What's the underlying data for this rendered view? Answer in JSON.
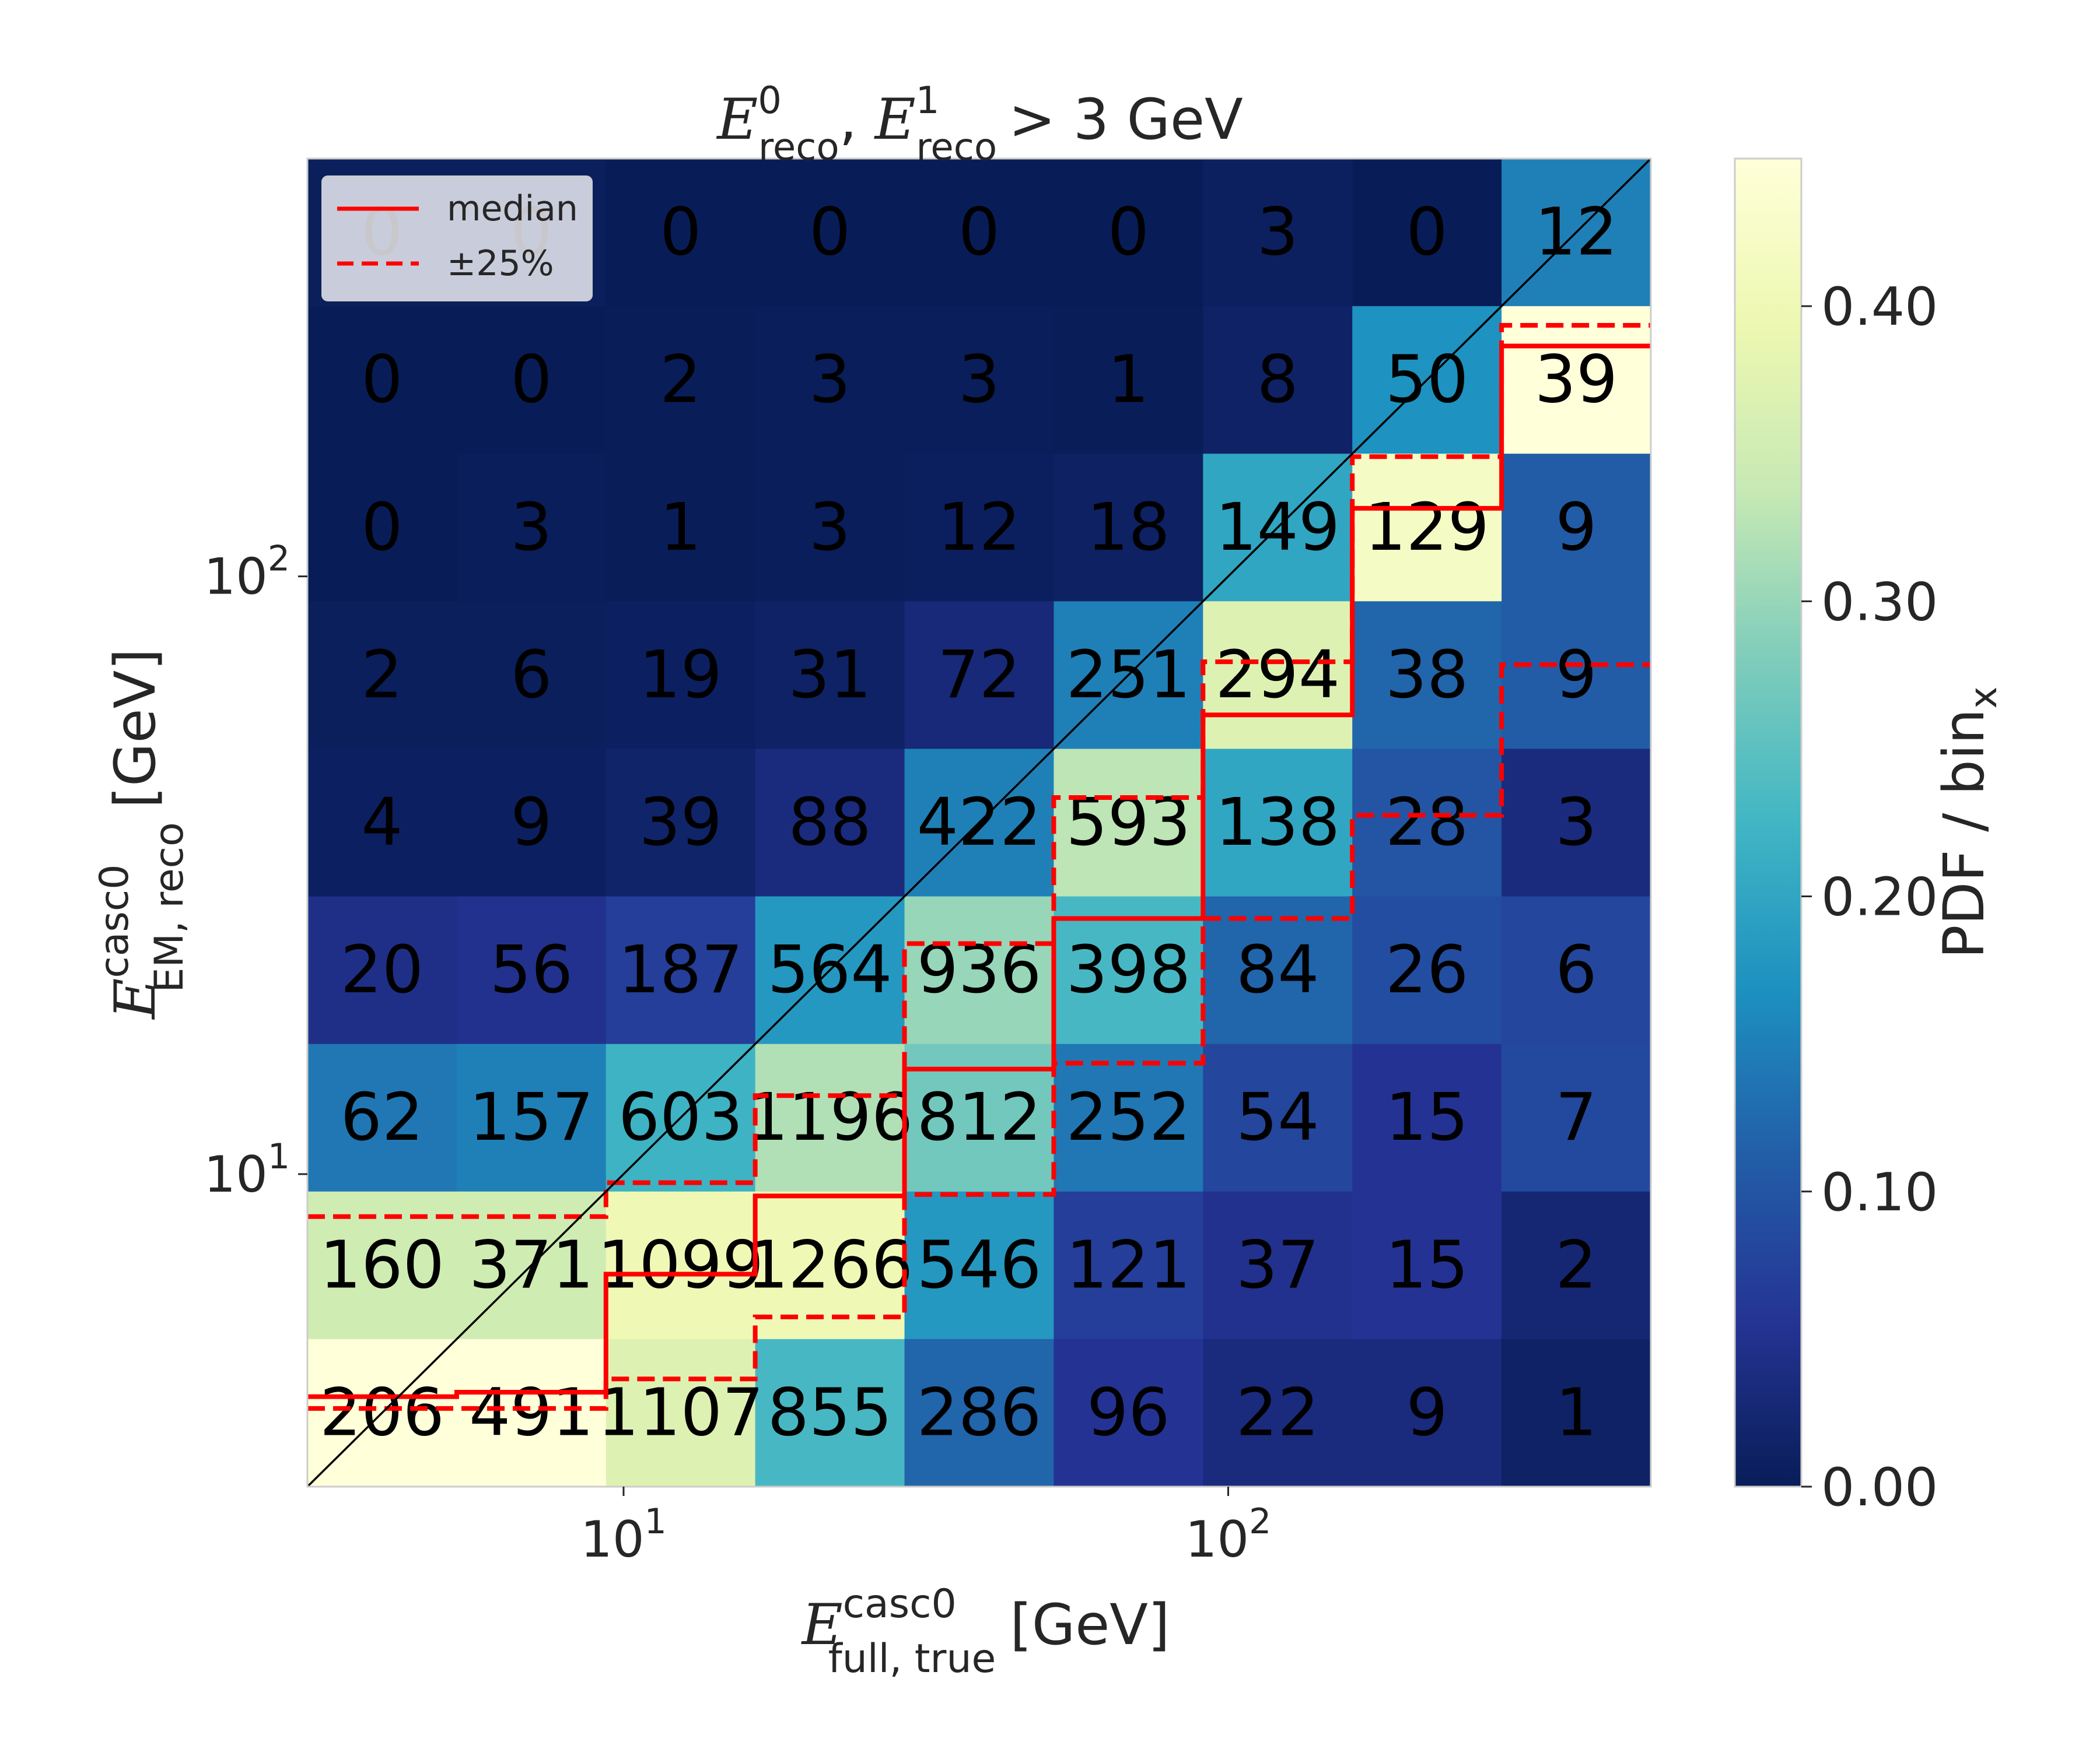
{
  "chart_data": {
    "type": "heatmap",
    "title": {
      "symbol": "E",
      "sup0": "0",
      "sub0": "reco",
      "sup1": "1",
      "sub1": "reco",
      "rest": "> 3 GeV"
    },
    "xlabel": {
      "symbol": "E",
      "sup": "casc0",
      "sub": "full, true",
      "unit": "[GeV]"
    },
    "ylabel": {
      "symbol": "E",
      "sup": "casc0",
      "sub": "EM, reco",
      "unit": "[GeV]"
    },
    "x_scale": "log",
    "y_scale": "log",
    "x_range": [
      3,
      500
    ],
    "y_range": [
      3,
      500
    ],
    "x_ticks": [
      {
        "base": "10",
        "exp": "1",
        "value": 10
      },
      {
        "base": "10",
        "exp": "2",
        "value": 100
      }
    ],
    "y_ticks": [
      {
        "base": "10",
        "exp": "1",
        "value": 10
      },
      {
        "base": "10",
        "exp": "2",
        "value": 100
      }
    ],
    "n_bins": 9,
    "counts_top_to_bottom": [
      [
        "0",
        "0",
        "0",
        "0",
        "0",
        "0",
        "3",
        "0",
        "12"
      ],
      [
        "0",
        "0",
        "2",
        "3",
        "3",
        "1",
        "8",
        "50",
        "39"
      ],
      [
        "0",
        "3",
        "1",
        "3",
        "12",
        "18",
        "149",
        "129",
        "9"
      ],
      [
        "2",
        "6",
        "19",
        "31",
        "72",
        "251",
        "294",
        "38",
        "9"
      ],
      [
        "4",
        "9",
        "39",
        "88",
        "422",
        "593",
        "138",
        "28",
        "3"
      ],
      [
        "20",
        "56",
        "187",
        "564",
        "936",
        "398",
        "84",
        "26",
        "6"
      ],
      [
        "62",
        "157",
        "603",
        "1196",
        "812",
        "252",
        "54",
        "15",
        "7"
      ],
      [
        "160",
        "371",
        "1099",
        "1266",
        "546",
        "121",
        "37",
        "15",
        "2"
      ],
      [
        "206",
        "491",
        "1107",
        "855",
        "286",
        "96",
        "22",
        "9",
        "1"
      ]
    ],
    "pdf_per_bin_top_to_bottom": [
      [
        0.005,
        0.005,
        0.0,
        0.0,
        0.0,
        0.0,
        0.007,
        0.0,
        0.15
      ],
      [
        0.0,
        0.0,
        0.001,
        0.002,
        0.002,
        0.001,
        0.012,
        0.17,
        0.45
      ],
      [
        0.0,
        0.002,
        0.001,
        0.002,
        0.006,
        0.01,
        0.2,
        0.42,
        0.11
      ],
      [
        0.004,
        0.005,
        0.008,
        0.012,
        0.03,
        0.15,
        0.37,
        0.12,
        0.11
      ],
      [
        0.008,
        0.008,
        0.016,
        0.035,
        0.15,
        0.33,
        0.2,
        0.1,
        0.035
      ],
      [
        0.045,
        0.05,
        0.07,
        0.18,
        0.3,
        0.23,
        0.12,
        0.09,
        0.08
      ],
      [
        0.14,
        0.15,
        0.22,
        0.32,
        0.27,
        0.14,
        0.08,
        0.055,
        0.085
      ],
      [
        0.35,
        0.35,
        0.4,
        0.4,
        0.18,
        0.07,
        0.05,
        0.055,
        0.025
      ],
      [
        0.45,
        0.45,
        0.37,
        0.23,
        0.12,
        0.055,
        0.035,
        0.035,
        0.012
      ]
    ],
    "median_row_from_bottom": [
      0.61,
      0.64,
      1.44,
      1.97,
      2.83,
      3.85,
      5.23,
      6.63,
      7.73
    ],
    "lower25_row_from_bottom": [
      0.53,
      0.53,
      0.73,
      1.15,
      1.98,
      2.87,
      3.85,
      4.55,
      5.57
    ],
    "upper25_row_from_bottom": [
      1.83,
      1.83,
      2.06,
      2.65,
      3.68,
      4.67,
      5.59,
      6.98,
      7.87
    ],
    "colorbar": {
      "label": "PDF / bin",
      "label_sub": "x",
      "range": [
        0,
        0.45
      ],
      "ticks": [
        "0.00",
        "0.10",
        "0.20",
        "0.30",
        "0.40"
      ],
      "colormap": "YlGnBu"
    },
    "legend": {
      "position": "top-left",
      "entries": [
        {
          "label": "median",
          "style": "solid",
          "color": "#ff0000"
        },
        {
          "label": "±25%",
          "style": "dashed",
          "color": "#ff0000"
        }
      ]
    },
    "diagonal": {
      "color": "#000000"
    }
  }
}
